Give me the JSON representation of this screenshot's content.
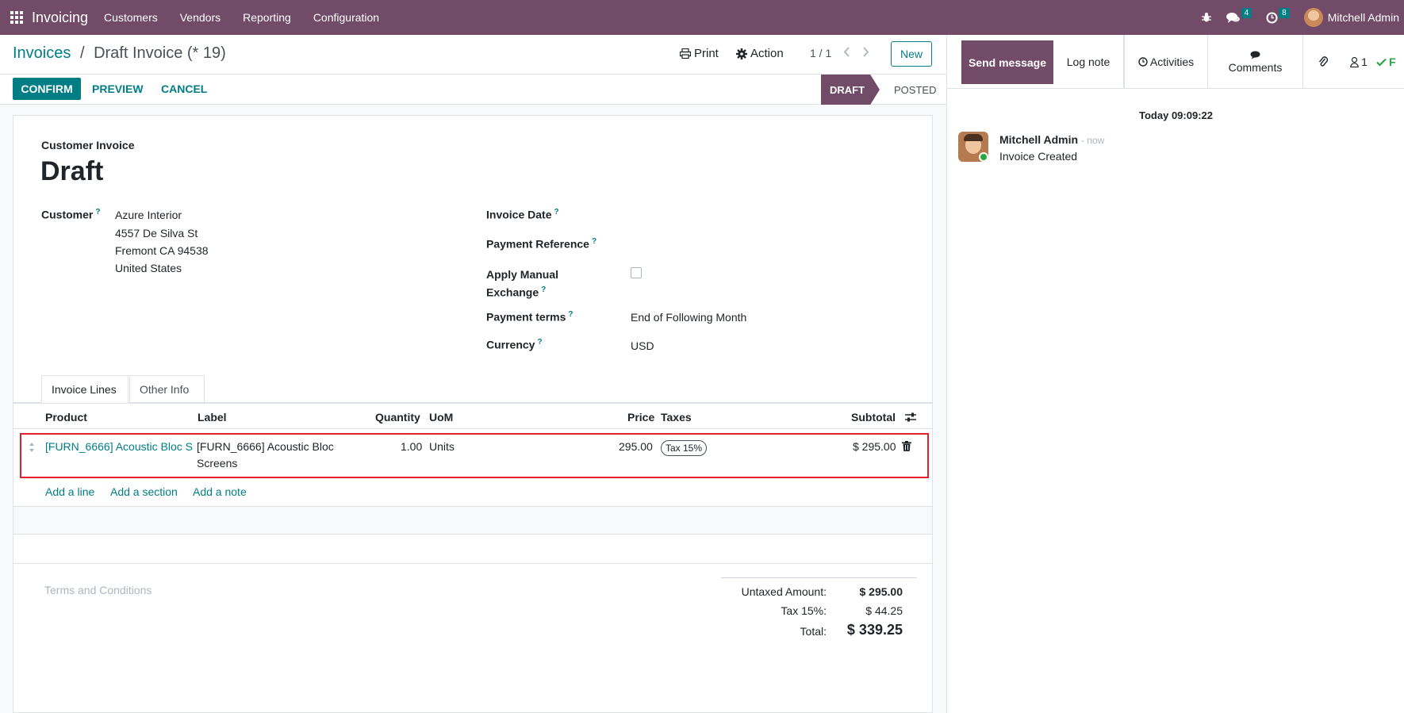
{
  "navbar": {
    "app_name": "Invoicing",
    "menus": [
      "Customers",
      "Vendors",
      "Reporting",
      "Configuration"
    ],
    "messages_count": "4",
    "activities_count": "8",
    "user_name": "Mitchell Admin"
  },
  "control_panel": {
    "breadcrumb_parent": "Invoices",
    "breadcrumb_separator": "/",
    "breadcrumb_current": "Draft Invoice (* 19)",
    "print_label": "Print",
    "action_label": "Action",
    "pager": "1 / 1",
    "new_label": "New"
  },
  "status_bar": {
    "confirm_label": "CONFIRM",
    "preview_label": "PREVIEW",
    "cancel_label": "CANCEL",
    "stage_draft": "DRAFT",
    "stage_posted": "POSTED"
  },
  "form": {
    "move_type": "Customer Invoice",
    "name": "Draft",
    "customer_label": "Customer",
    "customer_address": [
      "Azure Interior",
      "4557 De Silva St",
      "Fremont CA 94538",
      "United States"
    ],
    "invoice_date_label": "Invoice Date",
    "payment_reference_label": "Payment Reference",
    "apply_manual_label_1": "Apply Manual",
    "apply_manual_label_2": "Exchange",
    "payment_terms_label": "Payment terms",
    "payment_terms_value": "End of Following Month",
    "currency_label": "Currency",
    "currency_value": "USD",
    "help_mark": "?"
  },
  "tabs": [
    "Invoice Lines",
    "Other Info"
  ],
  "lines_table": {
    "headers": {
      "product": "Product",
      "label": "Label",
      "quantity": "Quantity",
      "uom": "UoM",
      "price": "Price",
      "taxes": "Taxes",
      "subtotal": "Subtotal"
    },
    "rows": [
      {
        "product": "[FURN_6666] Acoustic Bloc S",
        "label_line1": "[FURN_6666] Acoustic Bloc",
        "label_line2": "Screens",
        "quantity": "1.00",
        "uom": "Units",
        "price": "295.00",
        "tax": "Tax 15%",
        "subtotal": "$ 295.00"
      }
    ],
    "add_line": "Add a line",
    "add_section": "Add a section",
    "add_note": "Add a note"
  },
  "footer": {
    "terms_placeholder": "Terms and Conditions",
    "untaxed_label": "Untaxed Amount:",
    "untaxed_value": "$ 295.00",
    "tax_label": "Tax 15%:",
    "tax_value": "$ 44.25",
    "total_label": "Total:",
    "total_value": "$ 339.25"
  },
  "chatter": {
    "send_message": "Send message",
    "log_note": "Log note",
    "activities": "Activities",
    "comments": "Comments",
    "followers_count": "1",
    "follow_label": "F",
    "date_separator": "Today 09:09:22",
    "messages": [
      {
        "author": "Mitchell Admin",
        "time": "- now",
        "body": "Invoice Created"
      }
    ]
  },
  "colors": {
    "brand": "#714B67",
    "accent": "#017E84",
    "highlight_border": "#e0202a"
  }
}
